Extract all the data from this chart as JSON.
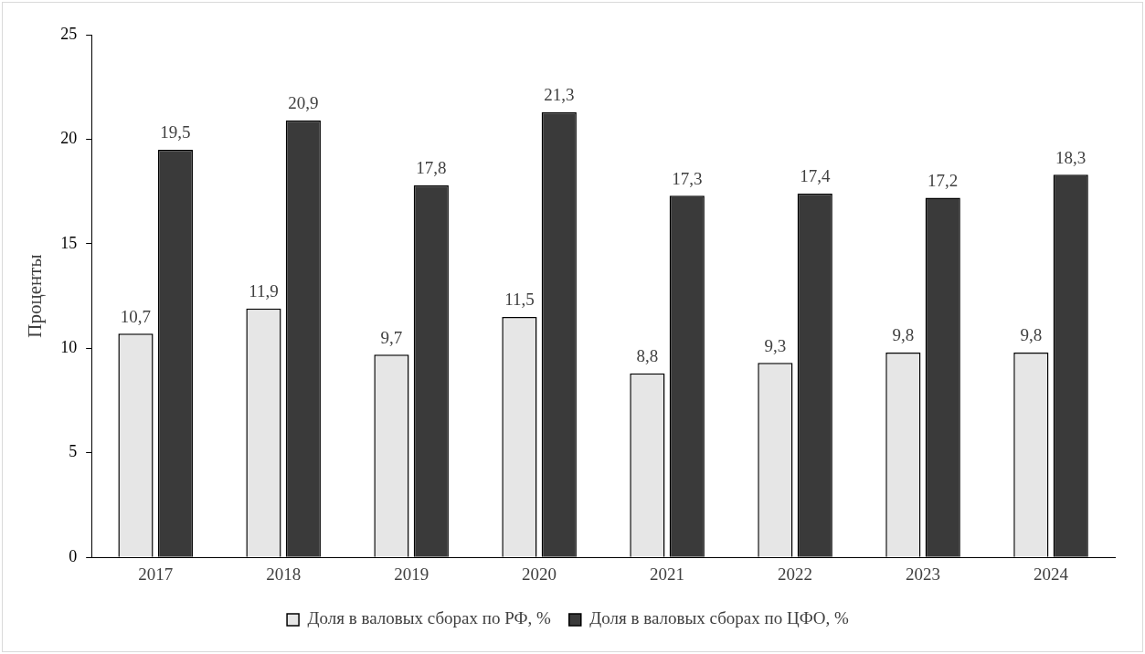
{
  "chart_data": {
    "type": "bar",
    "ylabel": "Проценты",
    "categories": [
      "2017",
      "2018",
      "2019",
      "2020",
      "2021",
      "2022",
      "2023",
      "2024"
    ],
    "series": [
      {
        "name": "Доля в валовых сборах по РФ, %",
        "color": "#e6e6e6",
        "values": [
          10.7,
          11.9,
          9.7,
          11.5,
          8.8,
          9.3,
          9.8,
          9.8
        ],
        "value_labels": [
          "10,7",
          "11,9",
          "9,7",
          "11,5",
          "8,8",
          "9,3",
          "9,8",
          "9,8"
        ]
      },
      {
        "name": "Доля в валовых сборах по ЦФО, %",
        "color": "#3a3a3a",
        "values": [
          19.5,
          20.9,
          17.8,
          21.3,
          17.3,
          17.4,
          17.2,
          18.3
        ],
        "value_labels": [
          "19,5",
          "20,9",
          "17,8",
          "21,3",
          "17,3",
          "17,4",
          "17,2",
          "18,3"
        ]
      }
    ],
    "ylim": [
      0,
      25
    ],
    "yticks": [
      0,
      5,
      10,
      15,
      20,
      25
    ],
    "grid": false,
    "legend": "bottom"
  }
}
